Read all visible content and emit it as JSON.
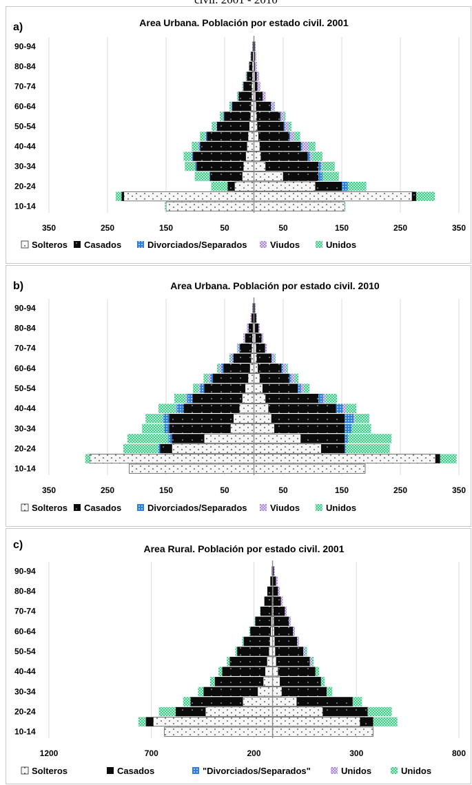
{
  "page_caption": "civil. 2001 - 2010",
  "chart_data": [
    {
      "type": "bar",
      "letter": "a)",
      "title": "Area Urbana. Población por estado civil. 2001",
      "categories": [
        "10-14",
        "15-19",
        "20-24",
        "25-29",
        "30-34",
        "35-39",
        "40-44",
        "45-49",
        "50-54",
        "55-59",
        "60-64",
        "65-69",
        "70-74",
        "75-79",
        "80-84",
        "85-89",
        "90-94"
      ],
      "category_labels": [
        "10-14",
        "",
        "20-24",
        "",
        "30-34",
        "",
        "40-44",
        "",
        "50-54",
        "",
        "60-64",
        "",
        "70-74",
        "",
        "80-84",
        "",
        "90-94"
      ],
      "xticks": [
        "350",
        "250",
        "150",
        "50",
        "50",
        "150",
        "250",
        "350"
      ],
      "xlim": [
        -350,
        350
      ],
      "left_series": [
        {
          "name": "Solteros",
          "values": [
            150,
            222,
            33,
            20,
            18,
            14,
            12,
            10,
            8,
            6,
            5,
            4,
            4,
            3,
            3,
            2,
            1
          ]
        },
        {
          "name": "Casados",
          "values": [
            0,
            4,
            12,
            55,
            80,
            90,
            80,
            70,
            55,
            45,
            32,
            22,
            14,
            9,
            5,
            3,
            1
          ]
        },
        {
          "name": "Divorciados/Separados",
          "values": [
            0,
            0,
            0,
            1,
            2,
            2,
            2,
            2,
            1,
            1,
            1,
            0,
            0,
            0,
            0,
            0,
            0
          ]
        },
        {
          "name": "Viudos",
          "values": [
            0,
            0,
            0,
            0,
            0,
            1,
            1,
            1,
            1,
            1,
            1,
            1,
            1,
            1,
            1,
            1,
            1
          ]
        },
        {
          "name": "Unidos",
          "values": [
            2,
            10,
            28,
            25,
            18,
            13,
            11,
            9,
            7,
            5,
            3,
            2,
            1,
            1,
            0,
            0,
            0
          ]
        }
      ],
      "right_series": [
        {
          "name": "Solteros",
          "values": [
            155,
            270,
            105,
            50,
            20,
            12,
            10,
            8,
            6,
            5,
            4,
            3,
            2,
            2,
            1,
            1,
            1
          ]
        },
        {
          "name": "Casados",
          "values": [
            0,
            7,
            45,
            60,
            90,
            80,
            70,
            52,
            45,
            40,
            25,
            12,
            4,
            3,
            1,
            1,
            1
          ]
        },
        {
          "name": "Divorciados/Separados",
          "values": [
            0,
            0,
            10,
            7,
            5,
            4,
            3,
            2,
            2,
            1,
            1,
            0,
            0,
            0,
            0,
            0,
            0
          ]
        },
        {
          "name": "Viudos",
          "values": [
            0,
            0,
            0,
            0,
            1,
            3,
            10,
            7,
            6,
            5,
            5,
            5,
            5,
            4,
            3,
            2,
            1
          ]
        },
        {
          "name": "Unidos",
          "values": [
            1,
            32,
            32,
            28,
            22,
            18,
            12,
            10,
            5,
            3,
            1,
            0,
            0,
            0,
            0,
            0,
            0
          ]
        }
      ],
      "colors": {
        "Solteros": "#f4f4f4",
        "Casados": "#0b0b0b",
        "Divorciados/Separados": "#2f7fd4",
        "Viudos": "#a98ad6",
        "Unidos": "#3ec98a"
      },
      "legend": [
        "Solteros",
        "Casados",
        "Divorciados/Separados",
        "Viudos",
        "Unidos"
      ],
      "grid": true,
      "legend_position": "bottom"
    },
    {
      "type": "bar",
      "letter": "b)",
      "title": "Area Urbana. Población por estado civil. 2010",
      "categories": [
        "10-14",
        "15-19",
        "20-24",
        "25-29",
        "30-34",
        "35-39",
        "40-44",
        "45-49",
        "50-54",
        "55-59",
        "60-64",
        "65-69",
        "70-74",
        "75-79",
        "80-84",
        "85-89",
        "90-94"
      ],
      "category_labels": [
        "10-14",
        "",
        "20-24",
        "",
        "30-34",
        "",
        "40-44",
        "",
        "50-54",
        "",
        "60-64",
        "",
        "70-74",
        "",
        "80-84",
        "",
        "90-94"
      ],
      "xticks": [
        "350",
        "250",
        "150",
        "50",
        "50",
        "150",
        "250",
        "350"
      ],
      "xlim": [
        -350,
        350
      ],
      "left_series": [
        {
          "name": "Solteros",
          "values": [
            213,
            280,
            140,
            85,
            40,
            35,
            25,
            20,
            15,
            10,
            7,
            5,
            4,
            3,
            2,
            1,
            1
          ]
        },
        {
          "name": "Casados",
          "values": [
            0,
            0,
            20,
            55,
            105,
            110,
            95,
            85,
            70,
            60,
            45,
            30,
            20,
            12,
            7,
            3,
            1
          ]
        },
        {
          "name": "Divorciados/Separados",
          "values": [
            0,
            0,
            3,
            6,
            8,
            10,
            12,
            9,
            7,
            5,
            4,
            2,
            1,
            0,
            0,
            0,
            0
          ]
        },
        {
          "name": "Viudos",
          "values": [
            0,
            0,
            0,
            0,
            0,
            0,
            1,
            2,
            2,
            3,
            3,
            3,
            3,
            3,
            3,
            2,
            1
          ]
        },
        {
          "name": "Unidos",
          "values": [
            0,
            8,
            60,
            70,
            38,
            30,
            30,
            20,
            10,
            8,
            4,
            2,
            1,
            0,
            0,
            0,
            0
          ]
        }
      ],
      "right_series": [
        {
          "name": "Solteros",
          "values": [
            190,
            310,
            115,
            80,
            35,
            30,
            25,
            20,
            15,
            10,
            7,
            5,
            4,
            3,
            2,
            1,
            1
          ]
        },
        {
          "name": "Casados",
          "values": [
            0,
            8,
            40,
            75,
            120,
            125,
            115,
            90,
            60,
            50,
            40,
            25,
            15,
            10,
            6,
            3,
            1
          ]
        },
        {
          "name": "Divorciados/Separados",
          "values": [
            0,
            0,
            2,
            5,
            12,
            15,
            12,
            8,
            5,
            4,
            3,
            1,
            0,
            0,
            0,
            0,
            0
          ]
        },
        {
          "name": "Viudos",
          "values": [
            0,
            0,
            0,
            0,
            0,
            2,
            5,
            4,
            5,
            5,
            5,
            4,
            3,
            3,
            2,
            1,
            1
          ]
        },
        {
          "name": "Unidos",
          "values": [
            0,
            28,
            75,
            75,
            33,
            25,
            18,
            20,
            10,
            7,
            3,
            2,
            0,
            0,
            0,
            0,
            0
          ]
        }
      ],
      "colors": {
        "Solteros": "#f4f4f4",
        "Casados": "#0b0b0b",
        "Divorciados/Separados": "#2f7fd4",
        "Viudos": "#a98ad6",
        "Unidos": "#3ec98a"
      },
      "legend": [
        "Solteros",
        "Casados",
        "Divorciados/Separados",
        "Viudos",
        "Unidos"
      ],
      "grid": true,
      "legend_position": "bottom"
    },
    {
      "type": "bar",
      "letter": "c)",
      "title": "Area Rural. Población por estado civil. 2001",
      "categories": [
        "10-14",
        "15-19",
        "20-24",
        "25-29",
        "30-34",
        "35-39",
        "40-44",
        "45-49",
        "50-54",
        "55-59",
        "60-64",
        "65-69",
        "70-74",
        "75-79",
        "80-84",
        "85-89",
        "90-94"
      ],
      "category_labels": [
        "10-14",
        "",
        "20-24",
        "",
        "30-34",
        "",
        "40-44",
        "",
        "50-54",
        "",
        "60-64",
        "",
        "70-74",
        "",
        "80-84",
        "",
        "90-94"
      ],
      "xticks": [
        "1200",
        "700",
        "200",
        "300",
        "800"
      ],
      "xlim": [
        -1200,
        1000
      ],
      "left_series": [
        {
          "name": "Solteros",
          "values": [
            580,
            640,
            360,
            160,
            80,
            50,
            40,
            30,
            20,
            15,
            10,
            8,
            5,
            4,
            3,
            2,
            1
          ]
        },
        {
          "name": "Casados",
          "values": [
            0,
            40,
            160,
            280,
            290,
            260,
            230,
            200,
            170,
            140,
            110,
            85,
            60,
            40,
            25,
            10,
            3
          ]
        },
        {
          "name": "\"Divorciados/Separados\"",
          "values": [
            0,
            0,
            0,
            0,
            0,
            0,
            0,
            0,
            0,
            0,
            0,
            0,
            0,
            0,
            0,
            0,
            0
          ]
        },
        {
          "name": "Unidos",
          "values": [
            0,
            0,
            0,
            0,
            0,
            0,
            0,
            0,
            0,
            0,
            0,
            0,
            0,
            0,
            0,
            0,
            0
          ]
        },
        {
          "name": "Unidos",
          "values": [
            0,
            40,
            90,
            40,
            30,
            25,
            20,
            15,
            10,
            8,
            5,
            3,
            2,
            0,
            0,
            0,
            0
          ]
        }
      ],
      "right_series": [
        {
          "name": "Solteros",
          "values": [
            540,
            470,
            270,
            130,
            50,
            40,
            30,
            20,
            15,
            12,
            10,
            8,
            6,
            5,
            4,
            3,
            2
          ]
        },
        {
          "name": "Casados",
          "values": [
            0,
            70,
            240,
            300,
            240,
            220,
            200,
            180,
            150,
            120,
            100,
            80,
            60,
            40,
            25,
            15,
            5
          ]
        },
        {
          "name": "\"Divorciados/Separados\"",
          "values": [
            0,
            0,
            0,
            0,
            0,
            0,
            0,
            0,
            0,
            0,
            0,
            0,
            0,
            0,
            0,
            0,
            0
          ]
        },
        {
          "name": "Unidos",
          "values": [
            0,
            0,
            0,
            0,
            0,
            0,
            0,
            10,
            10,
            10,
            10,
            10,
            10,
            10,
            10,
            10,
            5
          ]
        },
        {
          "name": "Unidos",
          "values": [
            0,
            130,
            130,
            50,
            30,
            20,
            20,
            10,
            10,
            0,
            0,
            0,
            0,
            0,
            0,
            0,
            0
          ]
        }
      ],
      "colors": {
        "Solteros": "#f4f4f4",
        "Casados": "#0b0b0b",
        "\"Divorciados/Separados\"": "#2f7fd4",
        "Unidos": "#3ec98a"
      },
      "series_colors": [
        "#f4f4f4",
        "#0b0b0b",
        "#2f7fd4",
        "#a98ad6",
        "#3ec98a"
      ],
      "legend": [
        "Solteros",
        "Casados",
        "\"Divorciados/Separados\"",
        "Unidos",
        "Unidos"
      ],
      "grid": true,
      "legend_position": "bottom"
    }
  ]
}
